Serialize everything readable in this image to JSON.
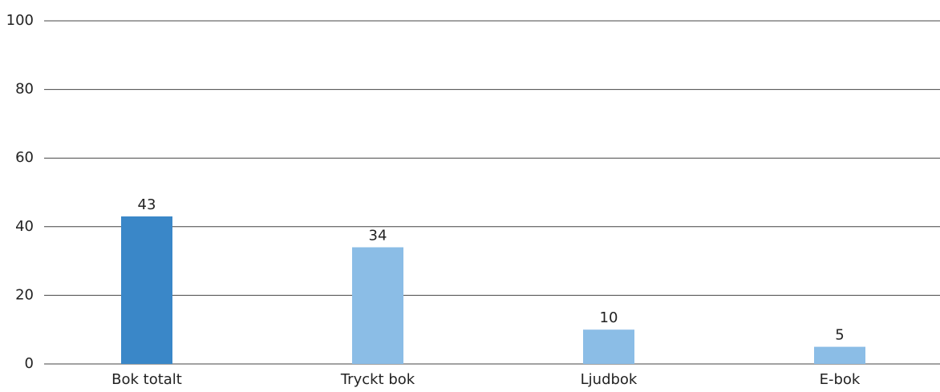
{
  "chart_data": {
    "type": "bar",
    "categories": [
      "Bok totalt",
      "Tryckt bok",
      "Ljudbok",
      "E-bok"
    ],
    "values": [
      43,
      34,
      10,
      5
    ],
    "colors": [
      "#3a87c8",
      "#8bbde6",
      "#8bbde6",
      "#8bbde6"
    ],
    "ylim": [
      0,
      100
    ],
    "yticks": [
      0,
      20,
      40,
      60,
      80,
      100
    ],
    "grid": true
  }
}
